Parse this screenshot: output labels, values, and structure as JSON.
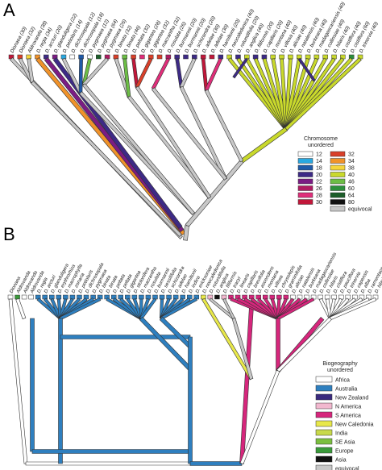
{
  "panel_a": {
    "letter": "A",
    "taxa": [
      "Dionaea (30)",
      "Dionaea (32)",
      "Aldrovanda (38)",
      "D. regia (34)",
      "D. arcturi (20)",
      "D. glanduligera (22)",
      "D. petiolaris (14)",
      "D. dichrosepala (12)",
      "D. dichrosepala (18)",
      "D. pygmaea (12)",
      "D. pygmaea (64)",
      "D. pygmaea (26)",
      "D. binata (32)",
      "D. binata (46)",
      "D. peltata (32)",
      "D. gigantea (28)",
      "D. gigantea (32)",
      "D. macrantha (32)",
      "D. rosulata (26)",
      "D. burmannii (20)",
      "D. burmannii (20)",
      "D. schizandra (20)",
      "D. adelae (30)",
      "D. adelae (30)",
      "D. hamiltonii (20)",
      "D. neocaledonica (40)",
      "D. rotundifolia (20)",
      "D. anglica (40)",
      "D. filiformis (20)",
      "D. capillaris (20)",
      "D. montana (40)",
      "D. villosa (40)",
      "D. aliciae (40)",
      "D. natalensis (40)",
      "D. burkeana (40)",
      "D. madagascariensis (40)",
      "D. collinsiae (40)",
      "D. hilaris (40)",
      "D. cistiflora (40)",
      "D. cistiflora (60)",
      "D. trinervia (40)"
    ],
    "legend": {
      "title": "Chromosome",
      "subtitle": "unordered",
      "items": [
        {
          "label": "12",
          "color": "#ffffff"
        },
        {
          "label": "14",
          "color": "#29a8e0"
        },
        {
          "label": "18",
          "color": "#1f5aa8"
        },
        {
          "label": "20",
          "color": "#3d2a86"
        },
        {
          "label": "22",
          "color": "#7b1c84"
        },
        {
          "label": "26",
          "color": "#b01c63"
        },
        {
          "label": "28",
          "color": "#e02e7a"
        },
        {
          "label": "30",
          "color": "#c1173a"
        },
        {
          "label": "32",
          "color": "#d9402a"
        },
        {
          "label": "34",
          "color": "#f0922a"
        },
        {
          "label": "38",
          "color": "#f5d53c"
        },
        {
          "label": "40",
          "color": "#c9d92c"
        },
        {
          "label": "46",
          "color": "#6cbd45"
        },
        {
          "label": "60",
          "color": "#2c8f3c"
        },
        {
          "label": "64",
          "color": "#1d5e2a"
        },
        {
          "label": "80",
          "color": "#111111"
        },
        {
          "label": "equivocal",
          "color": "#c8c8c8"
        }
      ]
    }
  },
  "panel_b": {
    "letter": "B",
    "taxa": [
      "Dionaea",
      "Aldrovanda",
      "Aldrovanda",
      "Aldrovanda",
      "D. regia",
      "D. arcturi",
      "D. glanduligera",
      "D. erythrorhiza",
      "D. macrophylla",
      "D. zonaria",
      "D. petiolaris",
      "D. dichrosepala",
      "D. pygmaea",
      "D. binata",
      "D. binata",
      "D. peltata",
      "D. peltata",
      "D. gigantea",
      "D. stolonifera",
      "D. macrantha",
      "D. rosulata",
      "D. burmannii",
      "D. sessilifolia",
      "D. schizandra",
      "D. adelae",
      "D. hamiltonii",
      "D. indica",
      "D. ericksoniae",
      "D. neocaledonica",
      "D. rotundifolia",
      "D. anglica",
      "D. filiformis",
      "D. tracyi",
      "D. linearis",
      "D. capillaris",
      "D. brevifolia",
      "D. ascendens",
      "D. montana",
      "D. villosa",
      "D. chrysolepis",
      "D. graminifolia",
      "D. aliciae",
      "D. natalensis",
      "D. burkeana",
      "D. madagascariensis",
      "D. collinsiae",
      "D. hilaris",
      "D. cistiflora",
      "D. pauciflora",
      "D. trinervia",
      "D. capensis",
      "D. alba",
      "D. ramentacea",
      "D. hilaris"
    ],
    "legend": {
      "title": "Biogeography",
      "subtitle": "unordered",
      "items": [
        {
          "label": "Africa",
          "color": "#ffffff"
        },
        {
          "label": "Australia",
          "color": "#2e7fbf"
        },
        {
          "label": "New Zealand",
          "color": "#3a2a7e"
        },
        {
          "label": "N America",
          "color": "#f2b8cf"
        },
        {
          "label": "S America",
          "color": "#d6267c"
        },
        {
          "label": "New Caledonia",
          "color": "#e8e84a"
        },
        {
          "label": "India",
          "color": "#c8d94a"
        },
        {
          "label": "SE Asia",
          "color": "#7bbf3f"
        },
        {
          "label": "Europe",
          "color": "#3a9a3a"
        },
        {
          "label": "Asia",
          "color": "#111111"
        },
        {
          "label": "equivocal",
          "color": "#c8c8c8"
        }
      ]
    }
  }
}
